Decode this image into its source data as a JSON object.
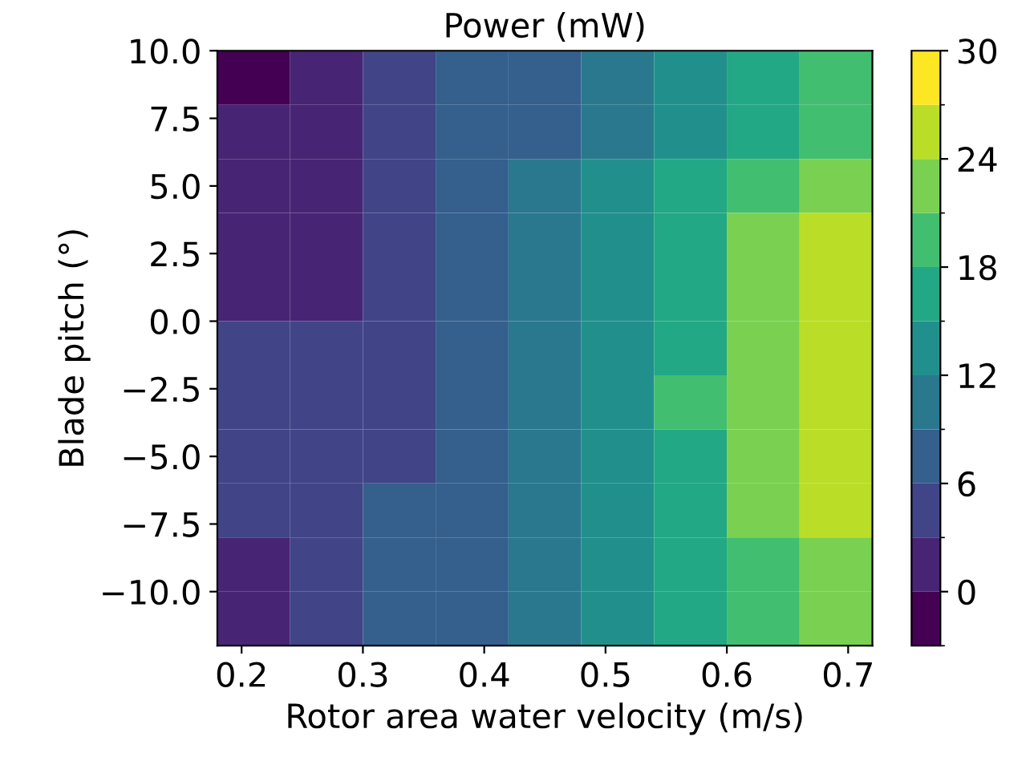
{
  "chart_data": {
    "type": "heatmap",
    "title": "Power (mW)",
    "xlabel": "Rotor area water velocity (m/s)",
    "ylabel": "Blade pitch (°)",
    "x": [
      0.21,
      0.27,
      0.33,
      0.39,
      0.45,
      0.51,
      0.57,
      0.63,
      0.69
    ],
    "y": [
      9,
      7,
      5,
      3,
      1,
      -1,
      -3,
      -5,
      -7,
      -9,
      -11
    ],
    "cells": [
      [
        -1,
        2.3,
        4.5,
        6.2,
        7.8,
        9.9,
        12.4,
        15.1,
        18.1
      ],
      [
        1.8,
        2.4,
        4.5,
        6.7,
        8.5,
        11,
        14,
        17,
        20
      ],
      [
        2.5,
        2.6,
        3.6,
        6,
        9,
        12.2,
        15.7,
        19.3,
        22.5
      ],
      [
        2.6,
        2.6,
        4,
        6.8,
        10.2,
        13.8,
        17.8,
        21.5,
        24.7
      ],
      [
        2.8,
        2.9,
        4.6,
        7.2,
        10,
        13.7,
        17.7,
        21.8,
        25.8
      ],
      [
        3.5,
        3.5,
        5.2,
        7.5,
        10.2,
        13.7,
        17.8,
        22.3,
        26.5
      ],
      [
        4,
        4.5,
        5.8,
        7.8,
        10.5,
        13.9,
        18.1,
        22.8,
        26.8
      ],
      [
        3.6,
        4.4,
        5.9,
        8,
        10.6,
        13.8,
        17.8,
        22.3,
        26
      ],
      [
        3.1,
        4.2,
        6,
        8.1,
        10.6,
        13.6,
        17.1,
        21,
        24.3
      ],
      [
        2.6,
        4.2,
        6.1,
        8.3,
        10.7,
        13.3,
        16.4,
        19.5,
        22.8
      ],
      [
        2.2,
        4.2,
        6.3,
        8.5,
        10.8,
        13.2,
        15.9,
        18.8,
        21.6
      ]
    ],
    "xlim": [
      0.18,
      0.72
    ],
    "xticks": [
      {
        "value": 0.2,
        "label": "0.2"
      },
      {
        "value": 0.3,
        "label": "0.3"
      },
      {
        "value": 0.4,
        "label": "0.4"
      },
      {
        "value": 0.5,
        "label": "0.5"
      },
      {
        "value": 0.6,
        "label": "0.6"
      },
      {
        "value": 0.7,
        "label": "0.7"
      }
    ],
    "ylim": [
      -12,
      10
    ],
    "yticks": [
      {
        "value": -10,
        "label": "−10.0"
      },
      {
        "value": -7.5,
        "label": "−7.5"
      },
      {
        "value": -5,
        "label": "−5.0"
      },
      {
        "value": -2.5,
        "label": "−2.5"
      },
      {
        "value": 0,
        "label": "0.0"
      },
      {
        "value": 2.5,
        "label": "2.5"
      },
      {
        "value": 5,
        "label": "5.0"
      },
      {
        "value": 7.5,
        "label": "7.5"
      },
      {
        "value": 10,
        "label": "10.0"
      }
    ],
    "clim": [
      -3,
      30
    ],
    "cticks": [
      0,
      6,
      12,
      18,
      24,
      30
    ]
  }
}
